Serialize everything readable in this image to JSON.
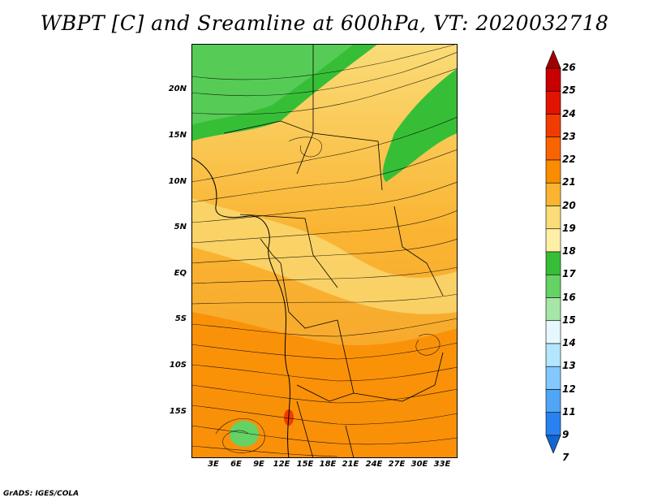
{
  "title": "WBPT [C] and Sreamline at 600hPa, VT: 2020032718",
  "credit": "GrADS: IGES/COLA",
  "map": {
    "projection": "lat-lon",
    "lat_labels": [
      "20N",
      "15N",
      "10N",
      "5N",
      "EQ",
      "5S",
      "10S",
      "15S"
    ],
    "lon_labels": [
      "3E",
      "6E",
      "9E",
      "12E",
      "15E",
      "18E",
      "21E",
      "24E",
      "27E",
      "30E",
      "33E"
    ],
    "field": "wet-bulb potential temperature",
    "overlay": "streamlines"
  },
  "colorbar": {
    "labels": [
      "26",
      "25",
      "24",
      "23",
      "22",
      "21",
      "20",
      "19",
      "18",
      "17",
      "16",
      "15",
      "14",
      "13",
      "12",
      "11",
      "9",
      "7"
    ],
    "colors": [
      "#a00000",
      "#c80000",
      "#e11400",
      "#f03c00",
      "#fa6400",
      "#fa8c00",
      "#fab432",
      "#fadc78",
      "#fff0a8",
      "#37be37",
      "#64d264",
      "#a6e6a6",
      "#e6f8ff",
      "#b4e6ff",
      "#82c8ff",
      "#50a5f5",
      "#2882f0",
      "#1464d2"
    ]
  }
}
